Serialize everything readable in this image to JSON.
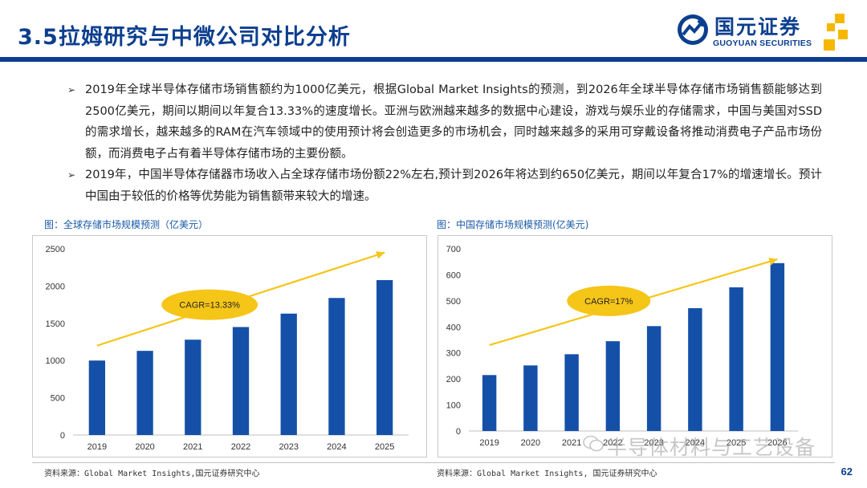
{
  "header": {
    "title": "3.5拉姆研究与中微公司对比分析",
    "logo_name": "国元证券",
    "logo_en": "GUOYUAN SECURITIES"
  },
  "bullets": [
    "2019年全球半导体存储市场销售额约为1000亿美元，根据Global Market Insights的预测，到2026年全球半导体存储市场销售额能够达到2500亿美元，期间以期间以年复合13.33%的速度增长。亚洲与欧洲越来越多的数据中心建设，游戏与娱乐业的存储需求，中国与美国对SSD的需求增长，越来越多的RAM在汽车领域中的使用预计将会创造更多的市场机会，同时越来越多的采用可穿戴设备将推动消费电子产品市场份额，而消费电子占有着半导体存储市场的主要份额。",
    "2019年，中国半导体存储器市场收入占全球存储市场份额22%左右,预计到2026年将达到约650亿美元，期间以年复合17%的增速增长。预计中国由于较低的价格等优势能为销售额带来较大的增速。"
  ],
  "figures": {
    "left_title": "图：全球存储市场规模预测（亿美元）",
    "right_title": "图：中国存储市场规模预测(亿美元)",
    "left_source": "资料来源：Global Market Insights,国元证券研究中心",
    "right_source": "资料来源：Global Market Insights, 国元证券研究中心"
  },
  "chart_data": [
    {
      "type": "bar",
      "title": "全球存储市场规模预测（亿美元）",
      "categories": [
        "2019",
        "2020",
        "2021",
        "2022",
        "2023",
        "2024",
        "2025"
      ],
      "values": [
        1000,
        1130,
        1280,
        1450,
        1630,
        1840,
        2080
      ],
      "ylim": [
        0,
        2500
      ],
      "yticks": [
        0,
        500,
        1000,
        1500,
        2000,
        2500
      ],
      "annotation": "CAGR=13.33%",
      "bar_color": "#1550a8",
      "arrow_color": "#f5c518"
    },
    {
      "type": "bar",
      "title": "中国存储市场规模预测(亿美元)",
      "categories": [
        "2019",
        "2020",
        "2021",
        "2022",
        "2023",
        "2024",
        "2025",
        "2026"
      ],
      "values": [
        215,
        252,
        295,
        345,
        403,
        472,
        552,
        645
      ],
      "ylim": [
        0,
        700
      ],
      "yticks": [
        0,
        100,
        200,
        300,
        400,
        500,
        600,
        700
      ],
      "annotation": "CAGR=17%",
      "bar_color": "#1550a8",
      "arrow_color": "#f5c518"
    }
  ],
  "watermark": "半导体材料与工艺设备",
  "page_number": "62",
  "colors": {
    "brand": "#0d3f8f",
    "accent": "#f5c518",
    "bar": "#1550a8"
  }
}
